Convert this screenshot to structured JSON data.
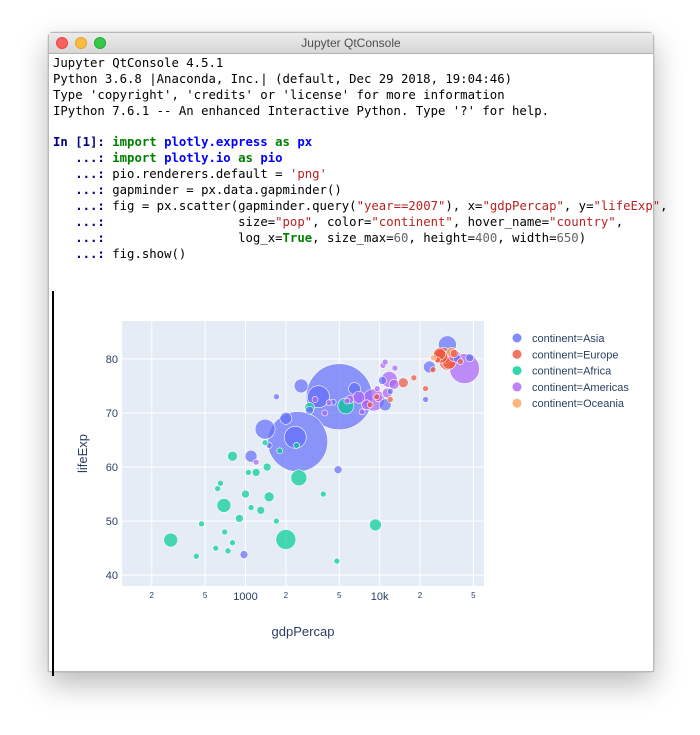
{
  "window": {
    "title": "Jupyter QtConsole"
  },
  "banner": [
    "Jupyter QtConsole 4.5.1",
    "Python 3.6.8 |Anaconda, Inc.| (default, Dec 29 2018, 19:04:46)",
    "Type 'copyright', 'credits' or 'license' for more information",
    "IPython 7.6.1 -- An enhanced Interactive Python. Type '?' for help."
  ],
  "cell": {
    "in_prompt": "In [1]:",
    "cont_prompt": "...:",
    "code": [
      "import plotly.express as px",
      "import plotly.io as pio",
      "pio.renderers.default = 'png'",
      "gapminder = px.data.gapminder()",
      "fig = px.scatter(gapminder.query(\"year==2007\"), x=\"gdpPercap\", y=\"lifeExp\",",
      "                 size=\"pop\", color=\"continent\", hover_name=\"country\",",
      "                 log_x=True, size_max=60, height=400, width=650)",
      "fig.show()"
    ]
  },
  "colors": {
    "Asia": "#636efa",
    "Europe": "#ef553b",
    "Africa": "#00cc96",
    "Americas": "#ab63fa",
    "Oceania": "#ffa15a",
    "plot_bg": "#e5ecf6",
    "axis_text": "#2a3f5f"
  },
  "chart_data": {
    "type": "scatter",
    "xlabel": "gdpPercap",
    "ylabel": "lifeExp",
    "x_scale": "log",
    "xlim": [
      120,
      60000
    ],
    "ylim": [
      38,
      87
    ],
    "yticks": [
      40,
      50,
      60,
      70,
      80
    ],
    "xticks": [
      {
        "v": 200,
        "label": "2"
      },
      {
        "v": 500,
        "label": "5"
      },
      {
        "v": 1000,
        "label": "1000"
      },
      {
        "v": 2000,
        "label": "2"
      },
      {
        "v": 5000,
        "label": "5"
      },
      {
        "v": 10000,
        "label": "10k"
      },
      {
        "v": 20000,
        "label": "2"
      },
      {
        "v": 50000,
        "label": "5"
      }
    ],
    "grid": true,
    "legend_position": "right",
    "legend": [
      "continent=Asia",
      "continent=Europe",
      "continent=Africa",
      "continent=Americas",
      "continent=Oceania"
    ],
    "series": [
      {
        "name": "continent=Asia",
        "points": [
          {
            "x": 5000,
            "y": 73,
            "r": 33
          },
          {
            "x": 2450,
            "y": 64.7,
            "r": 30
          },
          {
            "x": 1400,
            "y": 67,
            "r": 10
          },
          {
            "x": 1100,
            "y": 62,
            "r": 6
          },
          {
            "x": 2000,
            "y": 69,
            "r": 6
          },
          {
            "x": 3500,
            "y": 73,
            "r": 11
          },
          {
            "x": 2600,
            "y": 75,
            "r": 7
          },
          {
            "x": 2350,
            "y": 65.5,
            "r": 11
          },
          {
            "x": 6500,
            "y": 74.5,
            "r": 6
          },
          {
            "x": 11000,
            "y": 71.5,
            "r": 6
          },
          {
            "x": 4900,
            "y": 59.5,
            "r": 4
          },
          {
            "x": 32000,
            "y": 82.6,
            "r": 9
          },
          {
            "x": 23500,
            "y": 78.5,
            "r": 6
          },
          {
            "x": 38000,
            "y": 80,
            "r": 4
          },
          {
            "x": 47000,
            "y": 80.2,
            "r": 4
          },
          {
            "x": 974,
            "y": 43.8,
            "r": 4
          },
          {
            "x": 1500,
            "y": 64,
            "r": 3
          },
          {
            "x": 3000,
            "y": 70.5,
            "r": 4
          },
          {
            "x": 1700,
            "y": 73,
            "r": 3
          },
          {
            "x": 10500,
            "y": 76,
            "r": 4
          },
          {
            "x": 22000,
            "y": 72.5,
            "r": 3
          },
          {
            "x": 12000,
            "y": 74,
            "r": 3
          },
          {
            "x": 4500,
            "y": 72,
            "r": 3
          }
        ]
      },
      {
        "name": "continent=Europe",
        "points": [
          {
            "x": 32000,
            "y": 79.4,
            "r": 8
          },
          {
            "x": 30000,
            "y": 80.6,
            "r": 8
          },
          {
            "x": 33000,
            "y": 79.4,
            "r": 7
          },
          {
            "x": 28500,
            "y": 80.5,
            "r": 7
          },
          {
            "x": 28000,
            "y": 80.9,
            "r": 6
          },
          {
            "x": 15000,
            "y": 75.6,
            "r": 5
          },
          {
            "x": 18000,
            "y": 76.5,
            "r": 3
          },
          {
            "x": 22000,
            "y": 74.5,
            "r": 3
          },
          {
            "x": 25000,
            "y": 78,
            "r": 3
          },
          {
            "x": 36000,
            "y": 81,
            "r": 4
          },
          {
            "x": 9500,
            "y": 73,
            "r": 3
          },
          {
            "x": 12000,
            "y": 72.5,
            "r": 3
          },
          {
            "x": 8500,
            "y": 71.5,
            "r": 3
          },
          {
            "x": 40000,
            "y": 79.5,
            "r": 3
          },
          {
            "x": 27000,
            "y": 79.8,
            "r": 3
          }
        ]
      },
      {
        "name": "continent=Africa",
        "points": [
          {
            "x": 2000,
            "y": 46.6,
            "r": 10
          },
          {
            "x": 277,
            "y": 46.5,
            "r": 7
          },
          {
            "x": 690,
            "y": 52.9,
            "r": 7
          },
          {
            "x": 9300,
            "y": 49.3,
            "r": 6
          },
          {
            "x": 5600,
            "y": 71.3,
            "r": 8
          },
          {
            "x": 2500,
            "y": 58,
            "r": 8
          },
          {
            "x": 1500,
            "y": 54.5,
            "r": 5
          },
          {
            "x": 1300,
            "y": 52,
            "r": 4
          },
          {
            "x": 1450,
            "y": 60,
            "r": 4
          },
          {
            "x": 900,
            "y": 50.5,
            "r": 4
          },
          {
            "x": 1200,
            "y": 59,
            "r": 4
          },
          {
            "x": 800,
            "y": 62,
            "r": 5
          },
          {
            "x": 1000,
            "y": 55,
            "r": 4
          },
          {
            "x": 3000,
            "y": 71,
            "r": 5
          },
          {
            "x": 4800,
            "y": 42.6,
            "r": 3
          },
          {
            "x": 430,
            "y": 43.5,
            "r": 3
          },
          {
            "x": 600,
            "y": 45,
            "r": 3
          },
          {
            "x": 620,
            "y": 56,
            "r": 3
          },
          {
            "x": 700,
            "y": 48,
            "r": 3
          },
          {
            "x": 1700,
            "y": 50,
            "r": 3
          },
          {
            "x": 470,
            "y": 49.5,
            "r": 3
          },
          {
            "x": 800,
            "y": 46,
            "r": 3
          },
          {
            "x": 1050,
            "y": 59,
            "r": 3
          },
          {
            "x": 1800,
            "y": 63,
            "r": 3
          },
          {
            "x": 2400,
            "y": 64,
            "r": 3
          },
          {
            "x": 3800,
            "y": 55,
            "r": 3
          },
          {
            "x": 1400,
            "y": 64.5,
            "r": 3
          },
          {
            "x": 1100,
            "y": 52.5,
            "r": 3
          },
          {
            "x": 650,
            "y": 57,
            "r": 3
          },
          {
            "x": 740,
            "y": 44.5,
            "r": 3
          }
        ]
      },
      {
        "name": "continent=Americas",
        "points": [
          {
            "x": 42951,
            "y": 78.2,
            "r": 15
          },
          {
            "x": 9000,
            "y": 72.4,
            "r": 11
          },
          {
            "x": 11800,
            "y": 76.2,
            "r": 8
          },
          {
            "x": 7000,
            "y": 72.9,
            "r": 6
          },
          {
            "x": 12800,
            "y": 75.3,
            "r": 5
          },
          {
            "x": 36000,
            "y": 80.6,
            "r": 6
          },
          {
            "x": 8000,
            "y": 71.5,
            "r": 5
          },
          {
            "x": 11400,
            "y": 73.7,
            "r": 5
          },
          {
            "x": 6000,
            "y": 72.5,
            "r": 4
          },
          {
            "x": 3900,
            "y": 70,
            "r": 3
          },
          {
            "x": 9800,
            "y": 72.8,
            "r": 4
          },
          {
            "x": 13000,
            "y": 78.3,
            "r": 3
          },
          {
            "x": 4200,
            "y": 71.9,
            "r": 3
          },
          {
            "x": 10600,
            "y": 78.8,
            "r": 3
          },
          {
            "x": 7400,
            "y": 70.2,
            "r": 3
          },
          {
            "x": 5700,
            "y": 72.2,
            "r": 3
          },
          {
            "x": 1200,
            "y": 60.9,
            "r": 3
          },
          {
            "x": 9600,
            "y": 74.5,
            "r": 3
          },
          {
            "x": 11000,
            "y": 79.4,
            "r": 3
          },
          {
            "x": 3300,
            "y": 72.5,
            "r": 3
          }
        ]
      },
      {
        "name": "continent=Oceania",
        "points": [
          {
            "x": 34435,
            "y": 81.2,
            "r": 5
          },
          {
            "x": 25185,
            "y": 80.2,
            "r": 3
          }
        ]
      }
    ]
  }
}
